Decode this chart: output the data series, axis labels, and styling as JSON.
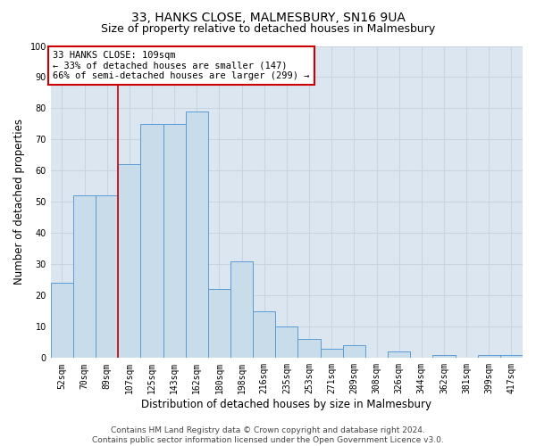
{
  "title": "33, HANKS CLOSE, MALMESBURY, SN16 9UA",
  "subtitle": "Size of property relative to detached houses in Malmesbury",
  "xlabel": "Distribution of detached houses by size in Malmesbury",
  "ylabel": "Number of detached properties",
  "categories": [
    "52sqm",
    "70sqm",
    "89sqm",
    "107sqm",
    "125sqm",
    "143sqm",
    "162sqm",
    "180sqm",
    "198sqm",
    "216sqm",
    "235sqm",
    "253sqm",
    "271sqm",
    "289sqm",
    "308sqm",
    "326sqm",
    "344sqm",
    "362sqm",
    "381sqm",
    "399sqm",
    "417sqm"
  ],
  "values": [
    24,
    52,
    52,
    62,
    75,
    75,
    79,
    22,
    31,
    15,
    10,
    6,
    3,
    4,
    0,
    2,
    0,
    1,
    0,
    1,
    1
  ],
  "bar_color": "#c9dcea",
  "bar_edge_color": "#5b9bd5",
  "grid_color": "#c8d4e0",
  "bg_color": "#dce6f0",
  "vline_x": 2.5,
  "vline_color": "#cc0000",
  "annotation_text": "33 HANKS CLOSE: 109sqm\n← 33% of detached houses are smaller (147)\n66% of semi-detached houses are larger (299) →",
  "annotation_box_facecolor": "#ffffff",
  "annotation_box_edgecolor": "#cc0000",
  "ylim": [
    0,
    100
  ],
  "yticks": [
    0,
    10,
    20,
    30,
    40,
    50,
    60,
    70,
    80,
    90,
    100
  ],
  "footer": "Contains HM Land Registry data © Crown copyright and database right 2024.\nContains public sector information licensed under the Open Government Licence v3.0.",
  "title_fontsize": 10,
  "subtitle_fontsize": 9,
  "axis_label_fontsize": 8.5,
  "tick_fontsize": 7,
  "annotation_fontsize": 7.5,
  "footer_fontsize": 6.5
}
